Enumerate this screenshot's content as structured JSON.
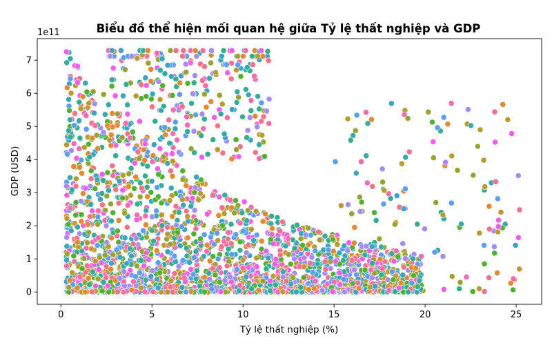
{
  "chart_data": {
    "type": "scatter",
    "title": "Biểu đồ thể hiện mối quan hệ giữa Tỷ lệ thất nghiệp và GDP",
    "xlabel": "Tỷ lệ thất nghiệp (%)",
    "ylabel": "GDP (USD)",
    "y_offset_label": "1e11",
    "xlim": [
      -1.3,
      26.4
    ],
    "ylim": [
      -0.37,
      7.65
    ],
    "y_scale_multiplier": 100000000000,
    "x_ticks": [
      0,
      5,
      10,
      15,
      20,
      25
    ],
    "x_tick_labels": [
      "0",
      "5",
      "10",
      "15",
      "20",
      "25"
    ],
    "y_ticks": [
      0,
      1,
      2,
      3,
      4,
      5,
      6,
      7
    ],
    "y_tick_labels": [
      "0",
      "1",
      "2",
      "3",
      "4",
      "5",
      "6",
      "7"
    ],
    "grid": false,
    "legend": "none",
    "marker_edge_color": "#ffffff",
    "palette": [
      "#f77189",
      "#e18a32",
      "#b89b31",
      "#97a431",
      "#50b131",
      "#34ae8c",
      "#37aaa6",
      "#3aa5c0",
      "#5c9ef6",
      "#a48cf4",
      "#f45deb",
      "#f66bac"
    ],
    "n_points": 3000
  }
}
